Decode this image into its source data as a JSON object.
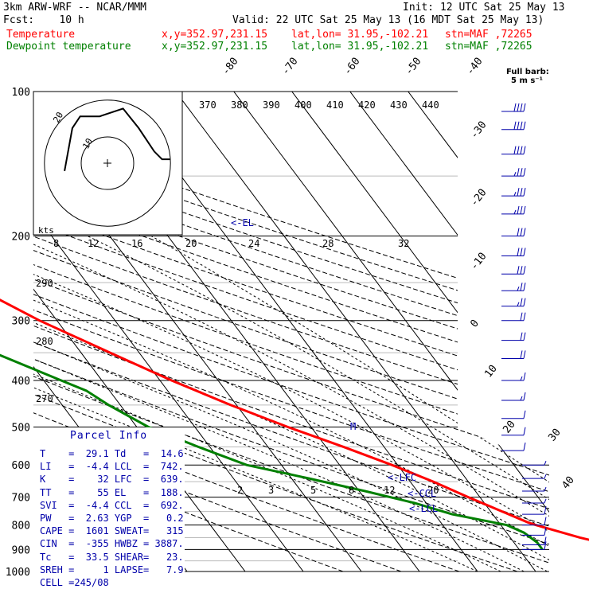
{
  "header": {
    "model": "3km ARW-WRF -- NCAR/MMM",
    "init": "Init: 12 UTC Sat 25 May 13",
    "fcst": "Fcst:    10 h",
    "valid": "Valid: 22 UTC Sat 25 May 13 (16 MDT Sat 25 May 13)",
    "temp_label": "Temperature",
    "dew_label": "Dewpoint temperature",
    "xy": "x,y=352.97,231.15",
    "latlon": "lat,lon= 31.95,-102.21",
    "stn": "stn=MAF ,72265"
  },
  "barb_label": "Full barb:",
  "barb_unit": "5 m s⁻¹",
  "hodo": {
    "kts": "kts",
    "ring10": "10",
    "ring20": "20"
  },
  "level_labels": {
    "el": "<-EL",
    "lfc": "<-LFC",
    "ccl": "<-CCL",
    "lcl": "<-LCL",
    "m": "M"
  },
  "parcel": {
    "title": "Parcel Info",
    "rows": [
      [
        "T",
        "29.1",
        "Td",
        "14.6"
      ],
      [
        "LI",
        "-4.4",
        "LCL",
        "742."
      ],
      [
        "K",
        "32",
        "LFC",
        "639."
      ],
      [
        "TT",
        "55",
        "EL",
        "188."
      ],
      [
        "SVI",
        "-4.4",
        "CCL",
        "692."
      ],
      [
        "PW",
        "2.63",
        "YGP",
        "0.2"
      ],
      [
        "CAPE",
        "1601",
        "SWEAT",
        "315"
      ],
      [
        "CIN",
        "-355",
        "HWBZ",
        "3887."
      ],
      [
        "Tc",
        "33.5",
        "SHEAR",
        "23."
      ],
      [
        "SREH",
        "1",
        "LAPSE",
        "7.9"
      ],
      [
        "CELL",
        "245/08",
        "",
        ""
      ]
    ]
  },
  "chart_data": {
    "type": "line",
    "xlabel": "",
    "ylabel": "",
    "pressure_levels": [
      "100",
      "200",
      "300",
      "400",
      "500",
      "600",
      "700",
      "800",
      "900",
      "1000"
    ],
    "isotherm_labels": [
      "-80",
      "-70",
      "-60",
      "-50",
      "-40",
      "-30",
      "-20",
      "-10",
      "0",
      "10",
      "20",
      "30",
      "40"
    ],
    "theta_labels": [
      "370",
      "380",
      "390",
      "400",
      "410",
      "420",
      "430",
      "440",
      "290",
      "280",
      "270"
    ],
    "mixing_ratio_labels_upper": [
      "8",
      "12",
      "16",
      "20",
      "24",
      "28",
      "32"
    ],
    "mixing_ratio_labels_lower": [
      "2",
      "3",
      "5",
      "8",
      "12",
      "20"
    ],
    "series": [
      {
        "name": "Temperature",
        "color": "#ff0000",
        "points": [
          [
            100,
            -69
          ],
          [
            130,
            -63
          ],
          [
            160,
            -60
          ],
          [
            180,
            -61
          ],
          [
            200,
            -59
          ],
          [
            230,
            -55
          ],
          [
            260,
            -49
          ],
          [
            300,
            -43
          ],
          [
            350,
            -35
          ],
          [
            400,
            -28
          ],
          [
            450,
            -21
          ],
          [
            500,
            -14
          ],
          [
            550,
            -7
          ],
          [
            600,
            -1
          ],
          [
            650,
            4
          ],
          [
            700,
            8
          ],
          [
            750,
            12
          ],
          [
            790,
            15
          ],
          [
            800,
            16
          ],
          [
            850,
            22
          ],
          [
            900,
            29
          ]
        ]
      },
      {
        "name": "Dewpoint temperature",
        "color": "#008000",
        "points": [
          [
            100,
            -80
          ],
          [
            130,
            -80
          ],
          [
            160,
            -81
          ],
          [
            190,
            -84
          ],
          [
            210,
            -86
          ],
          [
            230,
            -81
          ],
          [
            260,
            -73
          ],
          [
            300,
            -64
          ],
          [
            350,
            -55
          ],
          [
            400,
            -47
          ],
          [
            420,
            -44
          ],
          [
            450,
            -42
          ],
          [
            500,
            -38
          ],
          [
            550,
            -32
          ],
          [
            600,
            -26
          ],
          [
            640,
            -17
          ],
          [
            680,
            -9
          ],
          [
            720,
            -2
          ],
          [
            760,
            3
          ],
          [
            800,
            11
          ],
          [
            830,
            13
          ],
          [
            870,
            14
          ],
          [
            900,
            14
          ]
        ]
      }
    ],
    "winds": {
      "unit": "m s-1",
      "levels": [
        [
          110,
          270,
          40
        ],
        [
          120,
          270,
          40
        ],
        [
          135,
          270,
          40
        ],
        [
          150,
          270,
          35
        ],
        [
          165,
          270,
          35
        ],
        [
          180,
          270,
          35
        ],
        [
          200,
          270,
          30
        ],
        [
          220,
          270,
          30
        ],
        [
          240,
          270,
          30
        ],
        [
          260,
          270,
          25
        ],
        [
          280,
          270,
          25
        ],
        [
          300,
          270,
          20
        ],
        [
          330,
          270,
          20
        ],
        [
          360,
          270,
          20
        ],
        [
          400,
          270,
          15
        ],
        [
          440,
          270,
          15
        ],
        [
          480,
          260,
          10
        ],
        [
          520,
          250,
          10
        ],
        [
          560,
          240,
          10
        ],
        [
          600,
          230,
          5
        ],
        [
          640,
          220,
          5
        ],
        [
          680,
          200,
          5
        ],
        [
          720,
          180,
          5
        ],
        [
          760,
          180,
          10
        ],
        [
          800,
          180,
          10
        ],
        [
          840,
          180,
          10
        ],
        [
          880,
          180,
          10
        ],
        [
          900,
          180,
          10
        ]
      ]
    },
    "hodograph": {
      "points_uv": [
        [
          -11,
          2
        ],
        [
          -9,
          -9
        ],
        [
          -7,
          -12
        ],
        [
          -2,
          -12
        ],
        [
          4,
          -14
        ],
        [
          8,
          -9
        ],
        [
          12,
          -3
        ],
        [
          14,
          -1
        ],
        [
          16,
          -1
        ]
      ]
    }
  }
}
